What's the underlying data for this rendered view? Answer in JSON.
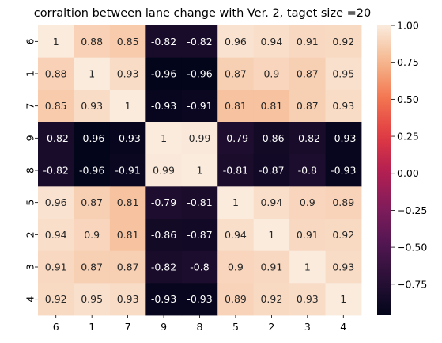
{
  "chart_data": {
    "type": "heatmap",
    "title": "corraltion between lane change with Ver. 2, taget size =20",
    "x_labels": [
      "6",
      "1",
      "7",
      "9",
      "8",
      "5",
      "2",
      "3",
      "4"
    ],
    "y_labels": [
      "6",
      "1",
      "7",
      "9",
      "8",
      "5",
      "2",
      "3",
      "4"
    ],
    "cell_labels": [
      [
        "1",
        "0.88",
        "0.85",
        "-0.82",
        "-0.82",
        "0.96",
        "0.94",
        "0.91",
        "0.92"
      ],
      [
        "0.88",
        "1",
        "0.93",
        "-0.96",
        "-0.96",
        "0.87",
        "0.9",
        "0.87",
        "0.95"
      ],
      [
        "0.85",
        "0.93",
        "1",
        "-0.93",
        "-0.91",
        "0.81",
        "0.81",
        "0.87",
        "0.93"
      ],
      [
        "-0.82",
        "-0.96",
        "-0.93",
        "1",
        "0.99",
        "-0.79",
        "-0.86",
        "-0.82",
        "-0.93"
      ],
      [
        "-0.82",
        "-0.96",
        "-0.91",
        "0.99",
        "1",
        "-0.81",
        "-0.87",
        "-0.8",
        "-0.93"
      ],
      [
        "0.96",
        "0.87",
        "0.81",
        "-0.79",
        "-0.81",
        "1",
        "0.94",
        "0.9",
        "0.89"
      ],
      [
        "0.94",
        "0.9",
        "0.81",
        "-0.86",
        "-0.87",
        "0.94",
        "1",
        "0.91",
        "0.92"
      ],
      [
        "0.91",
        "0.87",
        "0.87",
        "-0.82",
        "-0.8",
        "0.9",
        "0.91",
        "1",
        "0.93"
      ],
      [
        "0.92",
        "0.95",
        "0.93",
        "-0.93",
        "-0.93",
        "0.89",
        "0.92",
        "0.93",
        "1"
      ]
    ],
    "colorbar": {
      "min": -0.96,
      "max": 1.0,
      "tick_labels": [
        "1.00",
        "0.75",
        "0.50",
        "0.25",
        "0.00",
        "−0.25",
        "−0.50",
        "−0.75"
      ],
      "tick_values": [
        1.0,
        0.75,
        0.5,
        0.25,
        0.0,
        -0.25,
        -0.5,
        -0.75
      ],
      "colormap": "rocket"
    },
    "grid": false,
    "legend": "colorbar-right"
  }
}
